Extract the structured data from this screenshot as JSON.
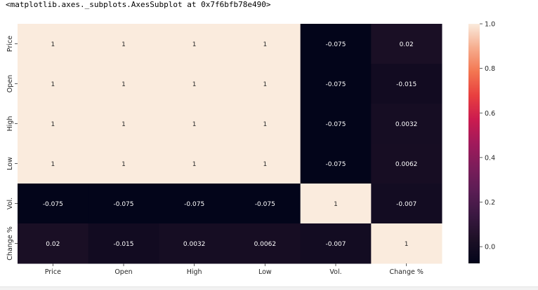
{
  "output_repr": "<matplotlib.axes._subplots.AxesSubplot at 0x7f6bfb78e490>",
  "chart_data": {
    "type": "heatmap",
    "title": "",
    "xlabel": "",
    "ylabel": "",
    "x_categories": [
      "Price",
      "Open",
      "High",
      "Low",
      "Vol.",
      "Change %"
    ],
    "y_categories": [
      "Price",
      "Open",
      "High",
      "Low",
      "Vol.",
      "Change %"
    ],
    "values": [
      [
        1,
        1,
        1,
        1,
        -0.075,
        0.02
      ],
      [
        1,
        1,
        1,
        1,
        -0.075,
        -0.015
      ],
      [
        1,
        1,
        1,
        1,
        -0.075,
        0.0032
      ],
      [
        1,
        1,
        1,
        1,
        -0.075,
        0.0062
      ],
      [
        -0.075,
        -0.075,
        -0.075,
        -0.075,
        1,
        -0.007
      ],
      [
        0.02,
        -0.015,
        0.0032,
        0.0062,
        -0.007,
        1
      ]
    ],
    "annotations": [
      [
        "1",
        "1",
        "1",
        "1",
        "-0.075",
        "0.02"
      ],
      [
        "1",
        "1",
        "1",
        "1",
        "-0.075",
        "-0.015"
      ],
      [
        "1",
        "1",
        "1",
        "1",
        "-0.075",
        "0.0032"
      ],
      [
        "1",
        "1",
        "1",
        "1",
        "-0.075",
        "0.0062"
      ],
      [
        "-0.075",
        "-0.075",
        "-0.075",
        "-0.075",
        "1",
        "-0.007"
      ],
      [
        "0.02",
        "-0.015",
        "0.0032",
        "0.0062",
        "-0.007",
        "1"
      ]
    ],
    "colormap": "rocket",
    "vmin": -0.075,
    "vmax": 1,
    "colorbar_ticks": [
      0.0,
      0.2,
      0.4,
      0.6,
      0.8,
      1.0
    ],
    "colorbar_tick_labels": [
      "0.0",
      "0.2",
      "0.4",
      "0.6",
      "0.8",
      "1.0"
    ]
  }
}
